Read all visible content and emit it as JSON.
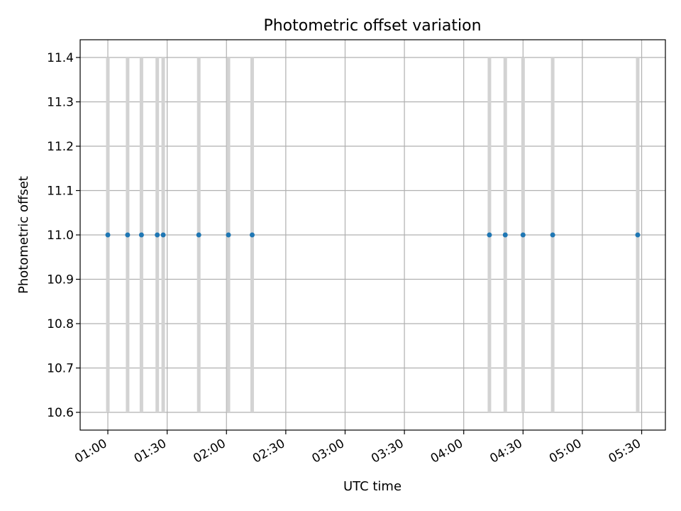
{
  "chart_data": {
    "type": "scatter",
    "title": "Photometric offset variation",
    "xlabel": "UTC time",
    "ylabel": "Photometric offset",
    "x_type": "time",
    "xlim": [
      "00:46",
      "05:42"
    ],
    "ylim": [
      10.56,
      11.44
    ],
    "x_ticks": [
      "01:00",
      "01:30",
      "02:00",
      "02:30",
      "03:00",
      "03:30",
      "04:00",
      "04:30",
      "05:00",
      "05:30"
    ],
    "y_ticks": [
      10.6,
      10.7,
      10.8,
      10.9,
      11.0,
      11.1,
      11.2,
      11.3,
      11.4
    ],
    "grid": true,
    "legend": "none",
    "series": [
      {
        "x": [
          "01:00",
          "01:10",
          "01:17",
          "01:25",
          "01:28",
          "01:46",
          "02:01",
          "02:13",
          "04:13",
          "04:21",
          "04:30",
          "04:45",
          "05:28"
        ],
        "y": [
          11.0,
          11.0,
          11.0,
          11.0,
          11.0,
          11.0,
          11.0,
          11.0,
          11.0,
          11.0,
          11.0,
          11.0,
          11.0
        ],
        "color": "#1f77b4"
      }
    ],
    "vertical_bands": {
      "x": [
        "01:00",
        "01:10",
        "01:17",
        "01:25",
        "01:28",
        "01:46",
        "02:01",
        "02:13",
        "04:13",
        "04:21",
        "04:30",
        "04:45",
        "05:28"
      ],
      "y_range": [
        10.6,
        11.4
      ],
      "color": "#d3d3d3"
    }
  }
}
